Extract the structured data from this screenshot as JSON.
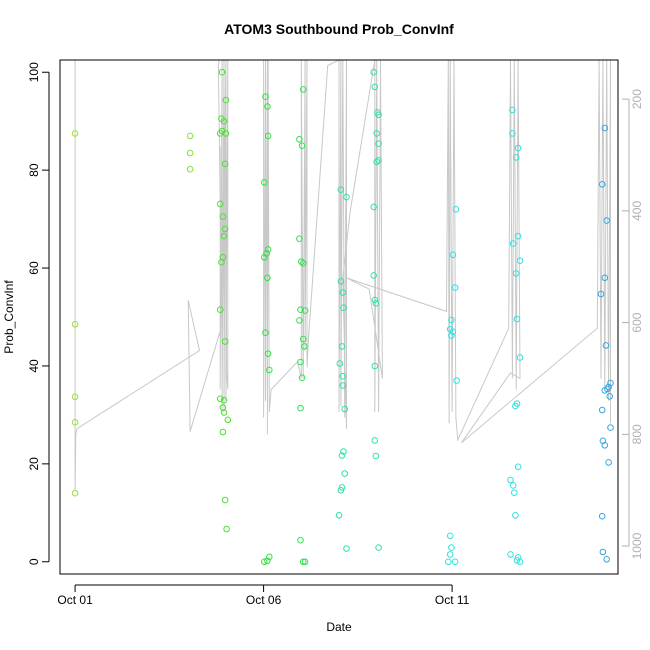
{
  "chart_data": {
    "type": "scatter",
    "title": "ATOM3 Southbound Prob_ConvInf",
    "xlabel": "Date",
    "ylabel": "Prob_ConvInf",
    "x_ticks": [
      {
        "label": "Oct 01",
        "value": 0
      },
      {
        "label": "Oct 06",
        "value": 5
      },
      {
        "label": "Oct 11",
        "value": 10
      }
    ],
    "xlim": [
      -0.4,
      14.4
    ],
    "y_ticks": [
      0,
      20,
      40,
      60,
      80,
      100
    ],
    "ylim": [
      -2.5,
      102.5
    ],
    "right_axis": {
      "ticks": [
        200,
        400,
        600,
        800,
        1000
      ],
      "lim": [
        1050,
        130
      ],
      "color": "#b0b0b0"
    },
    "grid": false,
    "points": [
      {
        "x": 0.0,
        "y": 87.5,
        "color": "#99e033"
      },
      {
        "x": 0.0,
        "y": 48.5,
        "color": "#99e033"
      },
      {
        "x": 0.0,
        "y": 33.7,
        "color": "#99e033"
      },
      {
        "x": 0.0,
        "y": 28.5,
        "color": "#99e033"
      },
      {
        "x": 0.0,
        "y": 14.0,
        "color": "#99e033"
      },
      {
        "x": 3.05,
        "y": 87.0,
        "color": "#88e033"
      },
      {
        "x": 3.05,
        "y": 83.5,
        "color": "#88e033"
      },
      {
        "x": 3.05,
        "y": 80.2,
        "color": "#88e033"
      },
      {
        "x": 3.9,
        "y": 100.0,
        "color": "#4ce033"
      },
      {
        "x": 3.88,
        "y": 90.5,
        "color": "#4ce033"
      },
      {
        "x": 3.95,
        "y": 90.0,
        "color": "#4ce033"
      },
      {
        "x": 4.0,
        "y": 94.3,
        "color": "#4ce033"
      },
      {
        "x": 3.9,
        "y": 88.0,
        "color": "#4ce033"
      },
      {
        "x": 4.0,
        "y": 87.5,
        "color": "#4ce033"
      },
      {
        "x": 3.85,
        "y": 87.5,
        "color": "#4ce033"
      },
      {
        "x": 3.98,
        "y": 81.3,
        "color": "#4ce033"
      },
      {
        "x": 3.85,
        "y": 73.1,
        "color": "#4ce033"
      },
      {
        "x": 3.92,
        "y": 70.5,
        "color": "#4ce033"
      },
      {
        "x": 3.98,
        "y": 68.0,
        "color": "#4ce033"
      },
      {
        "x": 3.95,
        "y": 66.5,
        "color": "#4ce033"
      },
      {
        "x": 3.92,
        "y": 62.2,
        "color": "#4ce033"
      },
      {
        "x": 3.88,
        "y": 61.2,
        "color": "#4ce033"
      },
      {
        "x": 3.85,
        "y": 51.5,
        "color": "#4ce033"
      },
      {
        "x": 3.98,
        "y": 45.0,
        "color": "#4ce033"
      },
      {
        "x": 3.85,
        "y": 33.3,
        "color": "#4ce033"
      },
      {
        "x": 3.95,
        "y": 33.0,
        "color": "#4ce033"
      },
      {
        "x": 3.92,
        "y": 31.5,
        "color": "#4ce033"
      },
      {
        "x": 3.95,
        "y": 30.5,
        "color": "#4ce033"
      },
      {
        "x": 4.05,
        "y": 29.0,
        "color": "#4ce033"
      },
      {
        "x": 3.92,
        "y": 26.5,
        "color": "#4ce033"
      },
      {
        "x": 3.98,
        "y": 12.6,
        "color": "#4ce033"
      },
      {
        "x": 4.02,
        "y": 6.7,
        "color": "#4ce033"
      },
      {
        "x": 5.05,
        "y": 95.0,
        "color": "#33e040"
      },
      {
        "x": 5.1,
        "y": 93.0,
        "color": "#33e040"
      },
      {
        "x": 5.12,
        "y": 87.0,
        "color": "#33e040"
      },
      {
        "x": 5.02,
        "y": 77.5,
        "color": "#33e040"
      },
      {
        "x": 5.12,
        "y": 63.8,
        "color": "#33e040"
      },
      {
        "x": 5.08,
        "y": 63.0,
        "color": "#33e040"
      },
      {
        "x": 5.02,
        "y": 62.2,
        "color": "#33e040"
      },
      {
        "x": 5.1,
        "y": 58.0,
        "color": "#33e040"
      },
      {
        "x": 5.05,
        "y": 46.8,
        "color": "#33e040"
      },
      {
        "x": 5.12,
        "y": 42.5,
        "color": "#33e040"
      },
      {
        "x": 5.15,
        "y": 39.2,
        "color": "#33e040"
      },
      {
        "x": 5.15,
        "y": 1.0,
        "color": "#33e040"
      },
      {
        "x": 5.1,
        "y": 0.2,
        "color": "#33e040"
      },
      {
        "x": 5.02,
        "y": 0.0,
        "color": "#33e040"
      },
      {
        "x": 5.95,
        "y": 86.3,
        "color": "#33e050"
      },
      {
        "x": 6.05,
        "y": 96.5,
        "color": "#33e050"
      },
      {
        "x": 6.02,
        "y": 85.0,
        "color": "#33e050"
      },
      {
        "x": 5.95,
        "y": 66.0,
        "color": "#33e050"
      },
      {
        "x": 6.0,
        "y": 61.3,
        "color": "#33e050"
      },
      {
        "x": 6.05,
        "y": 61.0,
        "color": "#33e050"
      },
      {
        "x": 6.1,
        "y": 51.3,
        "color": "#33e050"
      },
      {
        "x": 5.98,
        "y": 51.5,
        "color": "#33e050"
      },
      {
        "x": 5.95,
        "y": 49.3,
        "color": "#33e050"
      },
      {
        "x": 6.05,
        "y": 45.5,
        "color": "#33e050"
      },
      {
        "x": 6.08,
        "y": 44.0,
        "color": "#33e050"
      },
      {
        "x": 5.98,
        "y": 40.8,
        "color": "#33e050"
      },
      {
        "x": 6.02,
        "y": 37.6,
        "color": "#33e050"
      },
      {
        "x": 5.98,
        "y": 31.4,
        "color": "#33e050"
      },
      {
        "x": 5.98,
        "y": 4.4,
        "color": "#33e050"
      },
      {
        "x": 6.05,
        "y": 0.0,
        "color": "#33e050"
      },
      {
        "x": 6.1,
        "y": 0.0,
        "color": "#33e050"
      },
      {
        "x": 7.05,
        "y": 76.0,
        "color": "#33e0a0"
      },
      {
        "x": 7.2,
        "y": 74.5,
        "color": "#33e0a0"
      },
      {
        "x": 7.05,
        "y": 57.3,
        "color": "#33e0a0"
      },
      {
        "x": 7.1,
        "y": 55.0,
        "color": "#33e0a0"
      },
      {
        "x": 7.12,
        "y": 51.9,
        "color": "#33e0a0"
      },
      {
        "x": 7.08,
        "y": 44.0,
        "color": "#33e0a0"
      },
      {
        "x": 7.02,
        "y": 40.5,
        "color": "#33e0a0"
      },
      {
        "x": 7.1,
        "y": 37.9,
        "color": "#33e0a0"
      },
      {
        "x": 7.1,
        "y": 36.0,
        "color": "#33e0a0"
      },
      {
        "x": 7.15,
        "y": 31.2,
        "color": "#33e0a0"
      },
      {
        "x": 7.12,
        "y": 22.5,
        "color": "#33e0a0"
      },
      {
        "x": 7.08,
        "y": 21.7,
        "color": "#33e0a0"
      },
      {
        "x": 7.15,
        "y": 18.0,
        "color": "#33e0a0"
      },
      {
        "x": 7.08,
        "y": 15.2,
        "color": "#33e0a0"
      },
      {
        "x": 7.05,
        "y": 14.6,
        "color": "#33e0a0"
      },
      {
        "x": 7.0,
        "y": 9.5,
        "color": "#33e0a0"
      },
      {
        "x": 7.2,
        "y": 2.7,
        "color": "#33e0a0"
      },
      {
        "x": 7.92,
        "y": 100.0,
        "color": "#33e0a8"
      },
      {
        "x": 7.95,
        "y": 97.0,
        "color": "#33e0a8"
      },
      {
        "x": 8.02,
        "y": 91.8,
        "color": "#33e0a8"
      },
      {
        "x": 8.05,
        "y": 91.3,
        "color": "#33e0a8"
      },
      {
        "x": 8.0,
        "y": 87.5,
        "color": "#33e0a8"
      },
      {
        "x": 8.05,
        "y": 85.4,
        "color": "#33e0a8"
      },
      {
        "x": 8.05,
        "y": 82.0,
        "color": "#33e0a8"
      },
      {
        "x": 8.0,
        "y": 81.7,
        "color": "#33e0a8"
      },
      {
        "x": 7.92,
        "y": 72.5,
        "color": "#33e0a8"
      },
      {
        "x": 7.92,
        "y": 58.5,
        "color": "#33e0a8"
      },
      {
        "x": 7.95,
        "y": 53.5,
        "color": "#33e0a8"
      },
      {
        "x": 7.98,
        "y": 52.8,
        "color": "#33e0a8"
      },
      {
        "x": 7.95,
        "y": 40.0,
        "color": "#33e0a8"
      },
      {
        "x": 7.95,
        "y": 24.8,
        "color": "#33e0a8"
      },
      {
        "x": 7.98,
        "y": 21.6,
        "color": "#33e0a8"
      },
      {
        "x": 8.05,
        "y": 2.9,
        "color": "#33e0a8"
      },
      {
        "x": 10.1,
        "y": 72.0,
        "color": "#33e0e0"
      },
      {
        "x": 10.02,
        "y": 62.7,
        "color": "#33e0e0"
      },
      {
        "x": 10.08,
        "y": 56.0,
        "color": "#33e0e0"
      },
      {
        "x": 9.98,
        "y": 49.4,
        "color": "#33e0e0"
      },
      {
        "x": 9.95,
        "y": 47.5,
        "color": "#33e0e0"
      },
      {
        "x": 10.02,
        "y": 47.0,
        "color": "#33e0e0"
      },
      {
        "x": 9.98,
        "y": 46.2,
        "color": "#33e0e0"
      },
      {
        "x": 10.12,
        "y": 37.0,
        "color": "#33e0e0"
      },
      {
        "x": 9.95,
        "y": 5.3,
        "color": "#33e0e0"
      },
      {
        "x": 9.98,
        "y": 2.9,
        "color": "#33e0e0"
      },
      {
        "x": 9.95,
        "y": 1.5,
        "color": "#33e0e0"
      },
      {
        "x": 9.9,
        "y": 0.0,
        "color": "#33e0e0"
      },
      {
        "x": 10.08,
        "y": 0.0,
        "color": "#33e0e0"
      },
      {
        "x": 11.6,
        "y": 92.3,
        "color": "#33e0e0"
      },
      {
        "x": 11.6,
        "y": 87.5,
        "color": "#33e0e0"
      },
      {
        "x": 11.75,
        "y": 84.5,
        "color": "#33e0e0"
      },
      {
        "x": 11.7,
        "y": 82.6,
        "color": "#33e0e0"
      },
      {
        "x": 11.75,
        "y": 66.5,
        "color": "#33e0e0"
      },
      {
        "x": 11.62,
        "y": 65.0,
        "color": "#33e0e0"
      },
      {
        "x": 11.8,
        "y": 61.5,
        "color": "#33e0e0"
      },
      {
        "x": 11.7,
        "y": 58.9,
        "color": "#33e0e0"
      },
      {
        "x": 11.72,
        "y": 49.6,
        "color": "#33e0e0"
      },
      {
        "x": 11.8,
        "y": 41.7,
        "color": "#33e0e0"
      },
      {
        "x": 11.72,
        "y": 32.3,
        "color": "#33e0e0"
      },
      {
        "x": 11.68,
        "y": 31.8,
        "color": "#33e0e0"
      },
      {
        "x": 11.75,
        "y": 19.4,
        "color": "#33e0e0"
      },
      {
        "x": 11.55,
        "y": 16.7,
        "color": "#33e0e0"
      },
      {
        "x": 11.62,
        "y": 15.6,
        "color": "#33e0e0"
      },
      {
        "x": 11.65,
        "y": 14.1,
        "color": "#33e0e0"
      },
      {
        "x": 11.68,
        "y": 9.5,
        "color": "#33e0e0"
      },
      {
        "x": 11.55,
        "y": 1.5,
        "color": "#33e0e0"
      },
      {
        "x": 11.75,
        "y": 0.9,
        "color": "#33e0e0"
      },
      {
        "x": 11.72,
        "y": 0.3,
        "color": "#33e0e0"
      },
      {
        "x": 11.8,
        "y": 0.0,
        "color": "#33e0e0"
      },
      {
        "x": 14.05,
        "y": 88.6,
        "color": "#33a8e0"
      },
      {
        "x": 13.98,
        "y": 77.1,
        "color": "#33a8e0"
      },
      {
        "x": 14.1,
        "y": 69.7,
        "color": "#33a8e0"
      },
      {
        "x": 14.05,
        "y": 58.0,
        "color": "#33a8e0"
      },
      {
        "x": 13.95,
        "y": 54.7,
        "color": "#33a8e0"
      },
      {
        "x": 14.08,
        "y": 44.2,
        "color": "#33a8e0"
      },
      {
        "x": 14.2,
        "y": 36.5,
        "color": "#33a8e0"
      },
      {
        "x": 14.15,
        "y": 35.7,
        "color": "#33a8e0"
      },
      {
        "x": 14.05,
        "y": 35.0,
        "color": "#33a8e0"
      },
      {
        "x": 14.18,
        "y": 33.8,
        "color": "#33a8e0"
      },
      {
        "x": 14.12,
        "y": 35.3,
        "color": "#33a8e0"
      },
      {
        "x": 13.98,
        "y": 31.0,
        "color": "#33a8e0"
      },
      {
        "x": 14.2,
        "y": 27.4,
        "color": "#33a8e0"
      },
      {
        "x": 14.0,
        "y": 24.7,
        "color": "#33a8e0"
      },
      {
        "x": 14.05,
        "y": 23.8,
        "color": "#33a8e0"
      },
      {
        "x": 14.15,
        "y": 20.3,
        "color": "#33a8e0"
      },
      {
        "x": 13.98,
        "y": 9.3,
        "color": "#33a8e0"
      },
      {
        "x": 14.0,
        "y": 2.0,
        "color": "#33a8e0"
      },
      {
        "x": 14.1,
        "y": 0.5,
        "color": "#33a8e0"
      }
    ],
    "depth_trace": {
      "color": "#c8c8c8",
      "points": [
        [
          0.0,
          130
        ],
        [
          0.0,
          900
        ],
        [
          0.02,
          800
        ],
        [
          0.05,
          790
        ],
        [
          3.3,
          650
        ],
        [
          3.0,
          560
        ],
        [
          3.05,
          795
        ],
        [
          3.85,
          615
        ],
        [
          3.85,
          285
        ],
        [
          3.85,
          720
        ],
        [
          3.9,
          130
        ],
        [
          3.9,
          760
        ],
        [
          3.95,
          130
        ],
        [
          3.95,
          760
        ],
        [
          4.0,
          130
        ],
        [
          4.0,
          740
        ],
        [
          4.05,
          130
        ],
        [
          4.05,
          720
        ],
        [
          4.02,
          690
        ],
        [
          4.0,
          130
        ],
        [
          3.9,
          650
        ],
        [
          3.8,
          140
        ],
        [
          3.82,
          130
        ],
        [
          5.0,
          130
        ],
        [
          5.0,
          770
        ],
        [
          5.05,
          130
        ],
        [
          5.05,
          740
        ],
        [
          5.1,
          130
        ],
        [
          5.1,
          800
        ],
        [
          5.12,
          130
        ],
        [
          5.15,
          760
        ],
        [
          5.2,
          720
        ],
        [
          5.9,
          670
        ],
        [
          6.0,
          700
        ],
        [
          6.0,
          130
        ],
        [
          6.05,
          700
        ],
        [
          6.1,
          130
        ],
        [
          6.1,
          650
        ],
        [
          6.15,
          130
        ],
        [
          6.15,
          680
        ],
        [
          6.2,
          620
        ],
        [
          6.7,
          140
        ],
        [
          7.0,
          130
        ],
        [
          7.0,
          760
        ],
        [
          7.05,
          130
        ],
        [
          7.05,
          750
        ],
        [
          7.1,
          130
        ],
        [
          7.15,
          770
        ],
        [
          7.2,
          130
        ],
        [
          7.2,
          790
        ],
        [
          7.1,
          520
        ],
        [
          7.3,
          400
        ],
        [
          7.95,
          130
        ],
        [
          7.95,
          760
        ],
        [
          8.0,
          130
        ],
        [
          8.05,
          760
        ],
        [
          8.1,
          130
        ],
        [
          8.15,
          700
        ],
        [
          7.8,
          540
        ],
        [
          7.2,
          520
        ],
        [
          9.85,
          580
        ],
        [
          9.9,
          130
        ],
        [
          9.92,
          780
        ],
        [
          9.95,
          130
        ],
        [
          10.0,
          760
        ],
        [
          10.05,
          130
        ],
        [
          10.1,
          770
        ],
        [
          10.15,
          810
        ],
        [
          11.5,
          610
        ],
        [
          11.55,
          130
        ],
        [
          11.6,
          700
        ],
        [
          11.65,
          130
        ],
        [
          11.7,
          720
        ],
        [
          11.75,
          130
        ],
        [
          11.8,
          700
        ],
        [
          11.55,
          690
        ],
        [
          10.25,
          815
        ],
        [
          13.85,
          610
        ],
        [
          13.9,
          130
        ],
        [
          13.95,
          700
        ],
        [
          14.0,
          130
        ],
        [
          14.05,
          720
        ],
        [
          14.1,
          130
        ],
        [
          14.15,
          740
        ],
        [
          14.2,
          130
        ],
        [
          14.2,
          780
        ]
      ]
    }
  }
}
